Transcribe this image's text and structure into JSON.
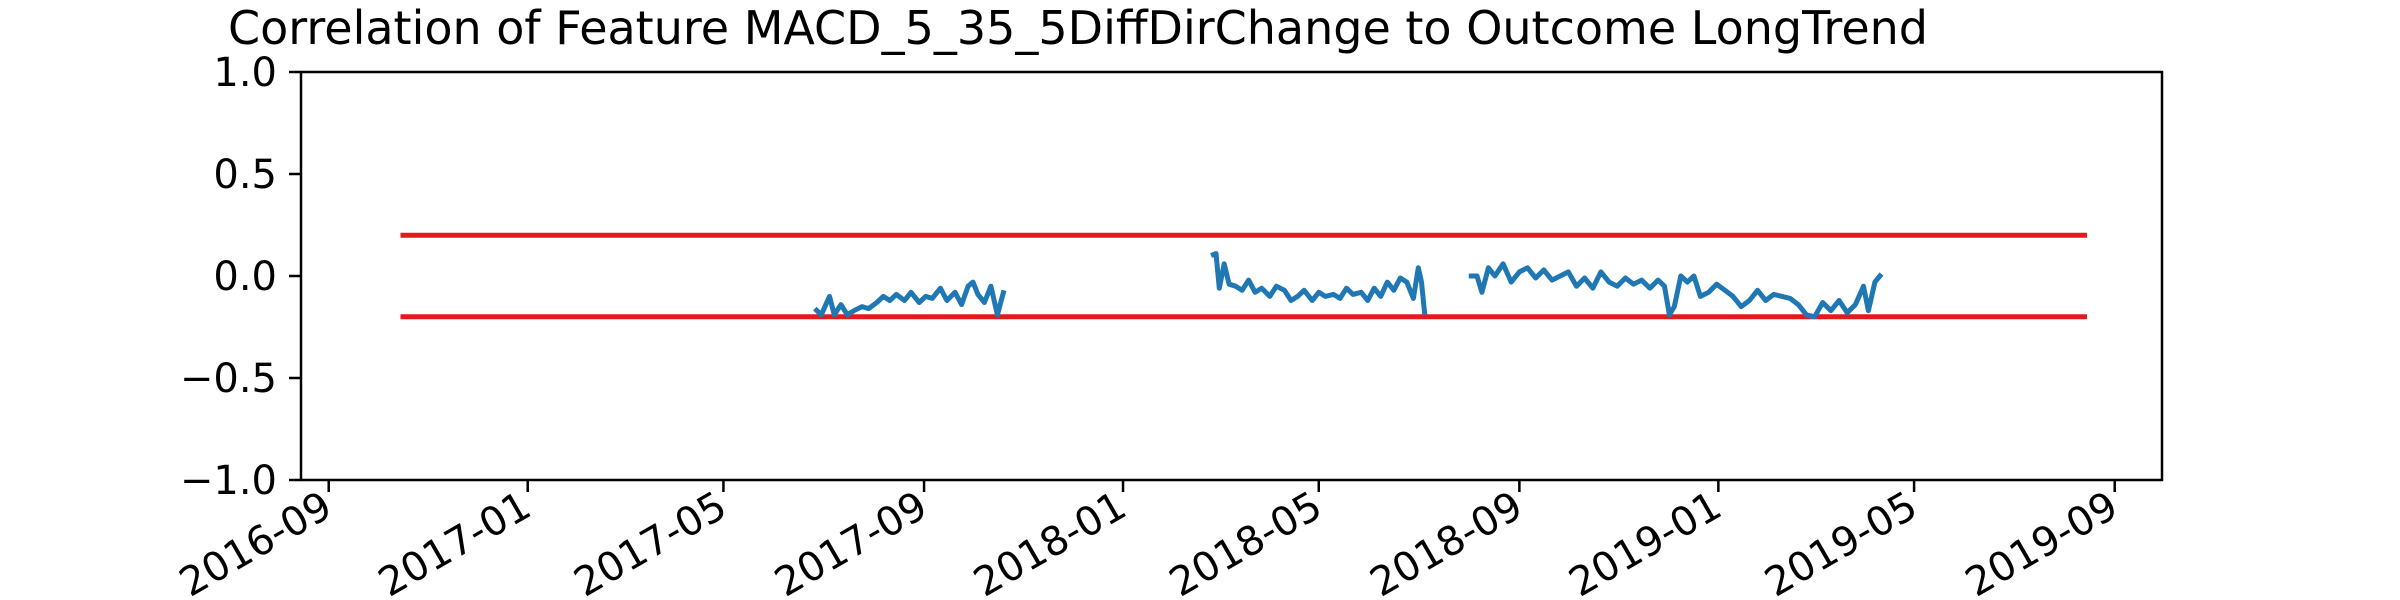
{
  "chart_data": {
    "type": "line",
    "title": "Correlation of Feature MACD_5_35_5DiffDirChange to Outcome LongTrend",
    "xlabel": "",
    "ylabel": "",
    "ylim": [
      -1.0,
      1.0
    ],
    "xlim": [
      "2016-08-15",
      "2019-09-30"
    ],
    "grid": false,
    "y_ticks": [
      -1.0,
      -0.5,
      0.0,
      0.5,
      1.0
    ],
    "y_tick_labels": [
      "−1.0",
      "−0.5",
      "0.0",
      "0.5",
      "1.0"
    ],
    "x_ticks": [
      "2016-09-01",
      "2017-01-01",
      "2017-05-01",
      "2017-09-01",
      "2018-01-01",
      "2018-05-01",
      "2018-09-01",
      "2019-01-01",
      "2019-05-01",
      "2019-09-01"
    ],
    "x_tick_labels": [
      "2016-09",
      "2017-01",
      "2017-05",
      "2017-09",
      "2018-01",
      "2018-05",
      "2018-09",
      "2019-01",
      "2019-05",
      "2019-09"
    ],
    "threshold_color": "#e41a1c",
    "series_color": "#1f77b4",
    "thresholds": [
      {
        "y": 0.2,
        "x_start": "2016-10-15",
        "x_end": "2019-08-15"
      },
      {
        "y": -0.2,
        "x_start": "2016-10-15",
        "x_end": "2019-08-15"
      }
    ],
    "series": [
      {
        "segments": [
          {
            "x": [
              "2017-06-26",
              "2017-06-30",
              "2017-07-05",
              "2017-07-08",
              "2017-07-12",
              "2017-07-16",
              "2017-07-20",
              "2017-07-25",
              "2017-07-29",
              "2017-08-03",
              "2017-08-07",
              "2017-08-11",
              "2017-08-15",
              "2017-08-20",
              "2017-08-24",
              "2017-08-29",
              "2017-09-02",
              "2017-09-06",
              "2017-09-11",
              "2017-09-15",
              "2017-09-20",
              "2017-09-24",
              "2017-09-28",
              "2017-10-01",
              "2017-10-04",
              "2017-10-08",
              "2017-10-12",
              "2017-10-16",
              "2017-10-20"
            ],
            "y": [
              -0.16,
              -0.19,
              -0.1,
              -0.19,
              -0.14,
              -0.19,
              -0.17,
              -0.15,
              -0.16,
              -0.13,
              -0.1,
              -0.12,
              -0.09,
              -0.12,
              -0.08,
              -0.13,
              -0.1,
              -0.11,
              -0.06,
              -0.12,
              -0.08,
              -0.14,
              -0.05,
              -0.03,
              -0.09,
              -0.13,
              -0.05,
              -0.19,
              -0.07
            ]
          },
          {
            "x": [
              "2018-02-24",
              "2018-02-27",
              "2018-03-01",
              "2018-03-04",
              "2018-03-07",
              "2018-03-11",
              "2018-03-15",
              "2018-03-19",
              "2018-03-23",
              "2018-03-27",
              "2018-04-01",
              "2018-04-05",
              "2018-04-10",
              "2018-04-14",
              "2018-04-18",
              "2018-04-22",
              "2018-04-27",
              "2018-05-01",
              "2018-05-05",
              "2018-05-10",
              "2018-05-14",
              "2018-05-18",
              "2018-05-22",
              "2018-05-27",
              "2018-05-31",
              "2018-06-04",
              "2018-06-08",
              "2018-06-12",
              "2018-06-16",
              "2018-06-20",
              "2018-06-24",
              "2018-06-28",
              "2018-07-01",
              "2018-07-03",
              "2018-07-05"
            ],
            "y": [
              0.1,
              0.11,
              -0.06,
              0.06,
              -0.04,
              -0.05,
              -0.07,
              -0.02,
              -0.08,
              -0.06,
              -0.1,
              -0.05,
              -0.07,
              -0.12,
              -0.1,
              -0.07,
              -0.12,
              -0.08,
              -0.1,
              -0.09,
              -0.11,
              -0.06,
              -0.09,
              -0.08,
              -0.12,
              -0.06,
              -0.1,
              -0.03,
              -0.07,
              -0.01,
              -0.03,
              -0.11,
              0.04,
              -0.03,
              -0.19
            ]
          },
          {
            "x": [
              "2018-08-01",
              "2018-08-06",
              "2018-08-09",
              "2018-08-13",
              "2018-08-17",
              "2018-08-22",
              "2018-08-27",
              "2018-09-01",
              "2018-09-06",
              "2018-09-11",
              "2018-09-16",
              "2018-09-21",
              "2018-09-26",
              "2018-10-01",
              "2018-10-06",
              "2018-10-11",
              "2018-10-16",
              "2018-10-21",
              "2018-10-26",
              "2018-10-31",
              "2018-11-05",
              "2018-11-10",
              "2018-11-15",
              "2018-11-20",
              "2018-11-25",
              "2018-11-29",
              "2018-12-02",
              "2018-12-05",
              "2018-12-09",
              "2018-12-13",
              "2018-12-17",
              "2018-12-21",
              "2018-12-26",
              "2018-12-31",
              "2019-01-05",
              "2019-01-10",
              "2019-01-15",
              "2019-01-20",
              "2019-01-25",
              "2019-01-30",
              "2019-02-04",
              "2019-02-09",
              "2019-02-14",
              "2019-02-19",
              "2019-02-24",
              "2019-03-01",
              "2019-03-06",
              "2019-03-11",
              "2019-03-16",
              "2019-03-21",
              "2019-03-26",
              "2019-03-31",
              "2019-04-03",
              "2019-04-07",
              "2019-04-11"
            ],
            "y": [
              0.0,
              0.0,
              -0.08,
              0.04,
              0.0,
              0.06,
              -0.03,
              0.02,
              0.04,
              -0.01,
              0.03,
              -0.02,
              0.0,
              0.02,
              -0.05,
              -0.01,
              -0.06,
              0.02,
              -0.03,
              -0.05,
              -0.01,
              -0.04,
              -0.02,
              -0.06,
              -0.02,
              -0.05,
              -0.19,
              -0.15,
              0.0,
              -0.03,
              0.0,
              -0.1,
              -0.08,
              -0.04,
              -0.07,
              -0.1,
              -0.15,
              -0.12,
              -0.07,
              -0.12,
              -0.09,
              -0.1,
              -0.11,
              -0.14,
              -0.19,
              -0.2,
              -0.13,
              -0.17,
              -0.12,
              -0.18,
              -0.14,
              -0.05,
              -0.17,
              -0.03,
              0.01
            ]
          }
        ]
      }
    ]
  }
}
